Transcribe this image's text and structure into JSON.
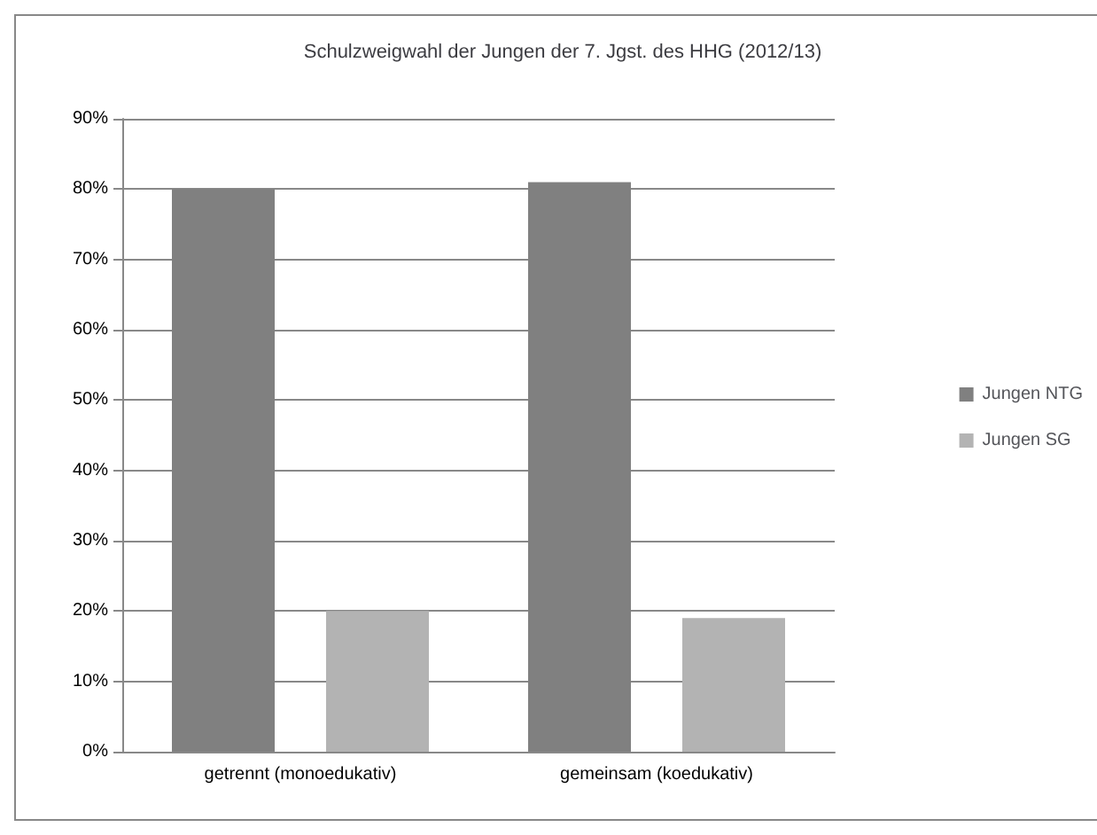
{
  "chart_data": {
    "type": "bar",
    "title": "Schulzweigwahl der Jungen der 7. Jgst. des HHG (2012/13)",
    "categories": [
      "getrennt (monoedukativ)",
      "gemeinsam (koedukativ)"
    ],
    "series": [
      {
        "name": "Jungen NTG",
        "color": "#808080",
        "values": [
          80,
          81
        ]
      },
      {
        "name": "Jungen SG",
        "color": "#b3b3b3",
        "values": [
          20,
          19
        ]
      }
    ],
    "ylim": [
      0,
      90
    ],
    "yticks": [
      {
        "value": 0,
        "label": "0%"
      },
      {
        "value": 10,
        "label": "10%"
      },
      {
        "value": 20,
        "label": "20%"
      },
      {
        "value": 30,
        "label": "30%"
      },
      {
        "value": 40,
        "label": "40%"
      },
      {
        "value": 50,
        "label": "50%"
      },
      {
        "value": 60,
        "label": "60%"
      },
      {
        "value": 70,
        "label": "70%"
      },
      {
        "value": 80,
        "label": "80%"
      },
      {
        "value": 90,
        "label": "90%"
      }
    ],
    "grid": "y",
    "legend": "right"
  }
}
